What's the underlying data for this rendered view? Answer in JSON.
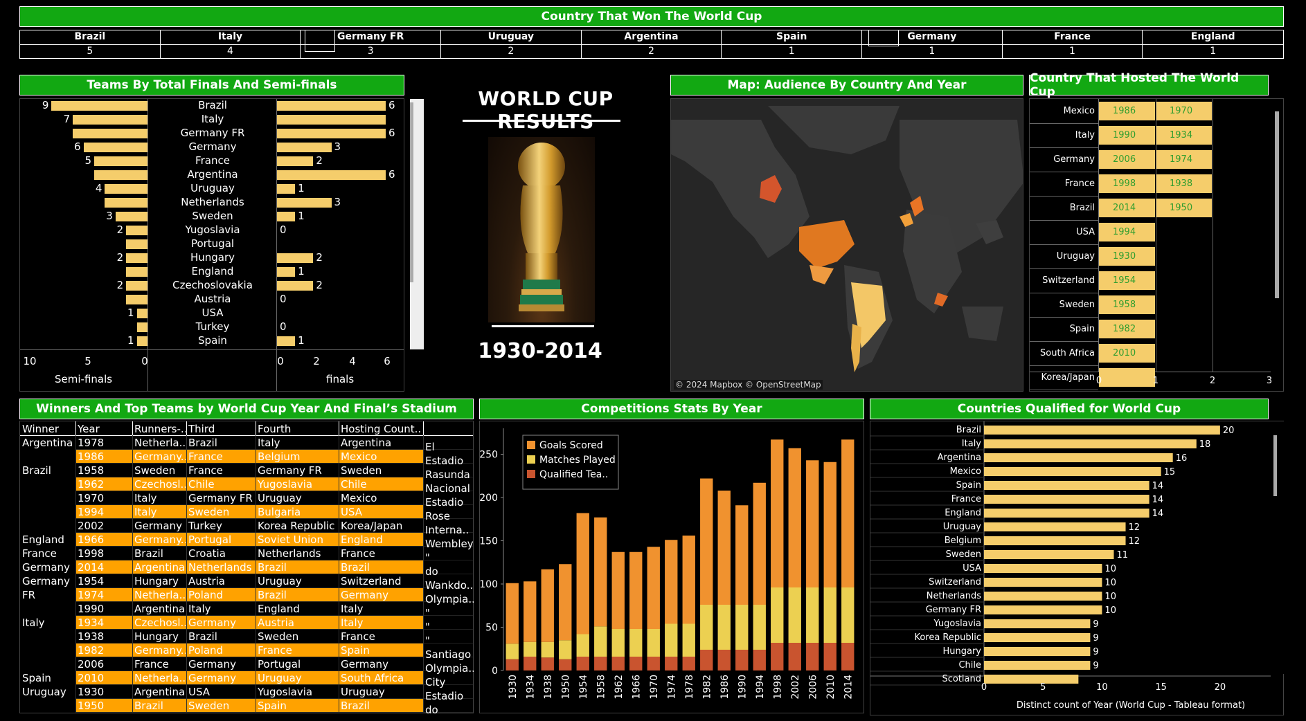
{
  "colors": {
    "header": "#12a812",
    "bar": "#f5cd6b",
    "orange_row": "#ffa200",
    "goals": "#f0922f",
    "matches": "#ecd051",
    "qualified": "#c9542f",
    "map_bg": "#2a2a2a",
    "host_text": "#2f9e2f"
  },
  "winners_header": {
    "title": "Country That Won The World Cup",
    "teams": [
      {
        "name": "Brazil",
        "wins": "5"
      },
      {
        "name": "Italy",
        "wins": "4"
      },
      {
        "name": "Germany FR",
        "wins": "3"
      },
      {
        "name": "Uruguay",
        "wins": "2"
      },
      {
        "name": "Argentina",
        "wins": "2"
      },
      {
        "name": "Spain",
        "wins": "1"
      },
      {
        "name": "Germany",
        "wins": "1"
      },
      {
        "name": "France",
        "wins": "1"
      },
      {
        "name": "England",
        "wins": "1"
      }
    ]
  },
  "teams_panel": {
    "title": "Teams By Total Finals And Semi-finals",
    "semi_axis_label": "Semi-finals",
    "finals_axis_label": "finals",
    "semi_ticks": [
      "10",
      "5",
      "0"
    ],
    "finals_ticks": [
      "0",
      "2",
      "4",
      "6"
    ],
    "rows": [
      {
        "team": "Brazil",
        "semi": 9,
        "semi_label": "9",
        "finals": 6,
        "finals_label": "6"
      },
      {
        "team": "Italy",
        "semi": 7,
        "semi_label": "7",
        "finals": 6,
        "finals_label": ""
      },
      {
        "team": "Germany FR",
        "semi": 7,
        "semi_label": "",
        "finals": 6,
        "finals_label": "6"
      },
      {
        "team": "Germany",
        "semi": 6,
        "semi_label": "6",
        "finals": 3,
        "finals_label": "3"
      },
      {
        "team": "France",
        "semi": 5,
        "semi_label": "5",
        "finals": 2,
        "finals_label": "2"
      },
      {
        "team": "Argentina",
        "semi": 5,
        "semi_label": "",
        "finals": 6,
        "finals_label": "6"
      },
      {
        "team": "Uruguay",
        "semi": 4,
        "semi_label": "4",
        "finals": 1,
        "finals_label": "1"
      },
      {
        "team": "Netherlands",
        "semi": 4,
        "semi_label": "",
        "finals": 3,
        "finals_label": "3"
      },
      {
        "team": "Sweden",
        "semi": 3,
        "semi_label": "3",
        "finals": 1,
        "finals_label": "1"
      },
      {
        "team": "Yugoslavia",
        "semi": 2,
        "semi_label": "2",
        "finals": 0,
        "finals_label": "0"
      },
      {
        "team": "Portugal",
        "semi": 2,
        "semi_label": "",
        "finals": 0,
        "finals_label": ""
      },
      {
        "team": "Hungary",
        "semi": 2,
        "semi_label": "2",
        "finals": 2,
        "finals_label": "2"
      },
      {
        "team": "England",
        "semi": 2,
        "semi_label": "",
        "finals": 1,
        "finals_label": "1"
      },
      {
        "team": "Czechoslovakia",
        "semi": 2,
        "semi_label": "2",
        "finals": 2,
        "finals_label": "2"
      },
      {
        "team": "Austria",
        "semi": 2,
        "semi_label": "",
        "finals": 0,
        "finals_label": "0"
      },
      {
        "team": "USA",
        "semi": 1,
        "semi_label": "1",
        "finals": 0,
        "finals_label": ""
      },
      {
        "team": "Turkey",
        "semi": 1,
        "semi_label": "",
        "finals": 0,
        "finals_label": "0"
      },
      {
        "team": "Spain",
        "semi": 1,
        "semi_label": "1",
        "finals": 1,
        "finals_label": "1"
      }
    ]
  },
  "center": {
    "title": "WORLD CUP RESULTS",
    "years": "1930-2014"
  },
  "map": {
    "title": "Map: Audience By Country And Year",
    "attribution": "© 2024 Mapbox © OpenStreetMap"
  },
  "hosted": {
    "title": "Country That Hosted The World Cup",
    "ticks": [
      "0",
      "1",
      "2",
      "3"
    ],
    "rows": [
      {
        "country": "Mexico",
        "years": [
          "1986",
          "1970"
        ]
      },
      {
        "country": "Italy",
        "years": [
          "1990",
          "1934"
        ]
      },
      {
        "country": "Germany",
        "years": [
          "2006",
          "1974"
        ]
      },
      {
        "country": "France",
        "years": [
          "1998",
          "1938"
        ]
      },
      {
        "country": "Brazil",
        "years": [
          "2014",
          "1950"
        ]
      },
      {
        "country": "USA",
        "years": [
          "1994"
        ]
      },
      {
        "country": "Uruguay",
        "years": [
          "1930"
        ]
      },
      {
        "country": "Switzerland",
        "years": [
          "1954"
        ]
      },
      {
        "country": "Sweden",
        "years": [
          "1958"
        ]
      },
      {
        "country": "Spain",
        "years": [
          "1982"
        ]
      },
      {
        "country": "South Africa",
        "years": [
          "2010"
        ]
      },
      {
        "country": "Korea/Japan",
        "years": [
          ""
        ]
      }
    ]
  },
  "winners_table": {
    "title": "Winners And Top Teams by World Cup Year And Final’s Stadium",
    "columns": [
      "Winner",
      "Year",
      "Runners-..",
      "Third",
      "Fourth",
      "Hosting Count.."
    ],
    "rows": [
      {
        "winner": "Argentina",
        "year": "1978",
        "runner": "Netherla..",
        "third": "Brazil",
        "fourth": "Italy",
        "host": "Argentina",
        "stadium": "El",
        "hl": false
      },
      {
        "winner": "",
        "year": "1986",
        "runner": "Germany..",
        "third": "France",
        "fourth": "Belgium",
        "host": "Mexico",
        "stadium": "Estadio",
        "hl": true
      },
      {
        "winner": "Brazil",
        "year": "1958",
        "runner": "Sweden",
        "third": "France",
        "fourth": "Germany FR",
        "host": "Sweden",
        "stadium": "Rasunda",
        "hl": false
      },
      {
        "winner": "",
        "year": "1962",
        "runner": "Czechosl..",
        "third": "Chile",
        "fourth": "Yugoslavia",
        "host": "Chile",
        "stadium": "Nacional",
        "hl": true
      },
      {
        "winner": "",
        "year": "1970",
        "runner": "Italy",
        "third": "Germany FR",
        "fourth": "Uruguay",
        "host": "Mexico",
        "stadium": "Estadio",
        "hl": false
      },
      {
        "winner": "",
        "year": "1994",
        "runner": "Italy",
        "third": "Sweden",
        "fourth": "Bulgaria",
        "host": "USA",
        "stadium": "Rose",
        "hl": true
      },
      {
        "winner": "",
        "year": "2002",
        "runner": "Germany",
        "third": "Turkey",
        "fourth": "Korea Republic",
        "host": "Korea/Japan",
        "stadium": "Interna..",
        "hl": false
      },
      {
        "winner": "England",
        "year": "1966",
        "runner": "Germany..",
        "third": "Portugal",
        "fourth": "Soviet Union",
        "host": "England",
        "stadium": "Wembley",
        "hl": true
      },
      {
        "winner": "France",
        "year": "1998",
        "runner": "Brazil",
        "third": "Croatia",
        "fourth": "Netherlands",
        "host": "France",
        "stadium": "\"",
        "hl": false
      },
      {
        "winner": "Germany",
        "year": "2014",
        "runner": "Argentina",
        "third": "Netherlands",
        "fourth": "Brazil",
        "host": "Brazil",
        "stadium": "do",
        "hl": true
      },
      {
        "winner": "Germany",
        "year": "1954",
        "runner": "Hungary",
        "third": "Austria",
        "fourth": "Uruguay",
        "host": "Switzerland",
        "stadium": "Wankdo..",
        "hl": false
      },
      {
        "winner": "FR",
        "year": "1974",
        "runner": "Netherla..",
        "third": "Poland",
        "fourth": "Brazil",
        "host": "Germany",
        "stadium": "Olympia..",
        "hl": true
      },
      {
        "winner": "",
        "year": "1990",
        "runner": "Argentina",
        "third": "Italy",
        "fourth": "England",
        "host": "Italy",
        "stadium": "\"",
        "hl": false
      },
      {
        "winner": "Italy",
        "year": "1934",
        "runner": "Czechosl..",
        "third": "Germany",
        "fourth": "Austria",
        "host": "Italy",
        "stadium": "\"",
        "hl": true
      },
      {
        "winner": "",
        "year": "1938",
        "runner": "Hungary",
        "third": "Brazil",
        "fourth": "Sweden",
        "host": "France",
        "stadium": "\"",
        "hl": false
      },
      {
        "winner": "",
        "year": "1982",
        "runner": "Germany..",
        "third": "Poland",
        "fourth": "France",
        "host": "Spain",
        "stadium": "Santiago",
        "hl": true
      },
      {
        "winner": "",
        "year": "2006",
        "runner": "France",
        "third": "Germany",
        "fourth": "Portugal",
        "host": "Germany",
        "stadium": "Olympia..",
        "hl": false
      },
      {
        "winner": "Spain",
        "year": "2010",
        "runner": "Netherla..",
        "third": "Germany",
        "fourth": "Uruguay",
        "host": "South Africa",
        "stadium": "City",
        "hl": true
      },
      {
        "winner": "Uruguay",
        "year": "1930",
        "runner": "Argentina",
        "third": "USA",
        "fourth": "Yugoslavia",
        "host": "Uruguay",
        "stadium": "Estadio",
        "hl": false
      },
      {
        "winner": "",
        "year": "1950",
        "runner": "Brazil",
        "third": "Sweden",
        "fourth": "Spain",
        "host": "Brazil",
        "stadium": "do",
        "hl": true
      }
    ]
  },
  "chart_data": [
    {
      "type": "bar",
      "title": "Competitions Stats By Year",
      "stacked": true,
      "categories": [
        "1930",
        "1934",
        "1938",
        "1950",
        "1954",
        "1958",
        "1962",
        "1966",
        "1970",
        "1974",
        "1978",
        "1982",
        "1986",
        "1990",
        "1994",
        "1998",
        "2002",
        "2006",
        "2010",
        "2014"
      ],
      "series": [
        {
          "name": "Qualified Tea..",
          "values": [
            13,
            16,
            15,
            13,
            16,
            16,
            16,
            16,
            16,
            16,
            16,
            24,
            24,
            24,
            24,
            32,
            32,
            32,
            32,
            32
          ]
        },
        {
          "name": "Matches Played",
          "values": [
            18,
            17,
            18,
            22,
            26,
            35,
            32,
            32,
            32,
            38,
            38,
            52,
            52,
            52,
            52,
            64,
            64,
            64,
            64,
            64
          ]
        },
        {
          "name": "Goals Scored",
          "values": [
            70,
            70,
            84,
            88,
            140,
            126,
            89,
            89,
            95,
            97,
            102,
            146,
            132,
            115,
            141,
            171,
            161,
            147,
            145,
            171
          ]
        }
      ],
      "legend": [
        "Goals Scored",
        "Matches Played",
        "Qualified Tea.."
      ],
      "yticks": [
        "0",
        "50",
        "100",
        "150",
        "200",
        "250"
      ],
      "ylim": [
        0,
        280
      ],
      "legend_position": "top-left"
    },
    {
      "type": "bar",
      "title": "Countries Qualified for World Cup",
      "orientation": "horizontal",
      "xlabel": "Distinct count of Year (World Cup - Tableau format)",
      "xticks": [
        "0",
        "5",
        "10",
        "15",
        "20"
      ],
      "xlim": [
        0,
        23
      ],
      "categories": [
        "Brazil",
        "Italy",
        "Argentina",
        "Mexico",
        "Spain",
        "France",
        "England",
        "Uruguay",
        "Belgium",
        "Sweden",
        "USA",
        "Switzerland",
        "Netherlands",
        "Germany FR",
        "Yugoslavia",
        "Korea Republic",
        "Hungary",
        "Chile",
        "Scotland"
      ],
      "values": [
        20,
        18,
        16,
        15,
        14,
        14,
        14,
        12,
        12,
        11,
        10,
        10,
        10,
        10,
        9,
        9,
        9,
        9,
        8
      ],
      "labels": [
        "20",
        "18",
        "16",
        "15",
        "14",
        "14",
        "14",
        "12",
        "12",
        "11",
        "10",
        "10",
        "10",
        "10",
        "9",
        "9",
        "9",
        "9",
        ""
      ]
    }
  ]
}
